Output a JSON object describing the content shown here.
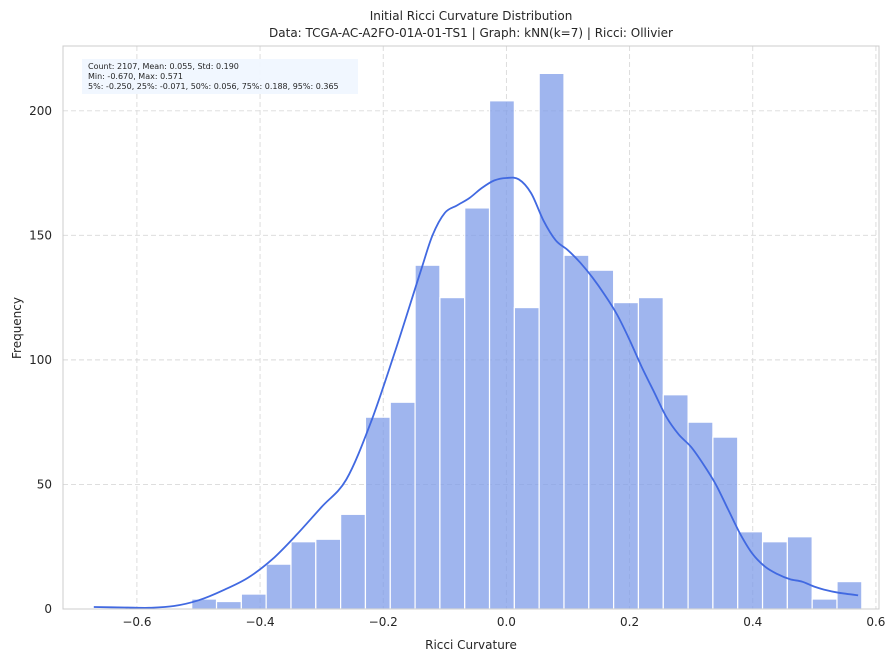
{
  "chart_data": {
    "type": "bar",
    "subtype": "histogram-with-kde",
    "title": "Initial Ricci Curvature Distribution",
    "subtitle": "Data: TCGA-AC-A2FO-01A-01-TS1 | Graph: kNN(k=7) | Ricci: Ollivier",
    "xlabel": "Ricci Curvature",
    "ylabel": "Frequency",
    "xlim": [
      -0.72,
      0.605
    ],
    "ylim": [
      0,
      226
    ],
    "xticks": [
      -0.6,
      -0.4,
      -0.2,
      0.0,
      0.2,
      0.4,
      0.6
    ],
    "xtick_labels": [
      "−0.6",
      "−0.4",
      "−0.2",
      "0.0",
      "0.2",
      "0.4",
      "0.6"
    ],
    "yticks": [
      0,
      50,
      100,
      150,
      200
    ],
    "ytick_labels": [
      "0",
      "50",
      "100",
      "150",
      "200"
    ],
    "grid": true,
    "bin_edges": [
      -0.511,
      -0.4707,
      -0.4304,
      -0.3901,
      -0.3498,
      -0.3095,
      -0.2692,
      -0.2289,
      -0.1886,
      -0.1483,
      -0.108,
      -0.0677,
      -0.0274,
      0.0129,
      0.0532,
      0.0935,
      0.1338,
      0.1741,
      0.2144,
      0.2547,
      0.295,
      0.3353,
      0.3756,
      0.4159,
      0.4562,
      0.4965,
      0.5368,
      0.5771
    ],
    "values": [
      4,
      3,
      6,
      18,
      27,
      28,
      38,
      77,
      83,
      138,
      125,
      161,
      204,
      121,
      215,
      142,
      136,
      123,
      125,
      86,
      75,
      69,
      31,
      27,
      29,
      4,
      11
    ],
    "kde": {
      "x": [
        -0.67,
        -0.62,
        -0.58,
        -0.54,
        -0.5,
        -0.46,
        -0.42,
        -0.38,
        -0.34,
        -0.3,
        -0.26,
        -0.22,
        -0.18,
        -0.14,
        -0.12,
        -0.1,
        -0.08,
        -0.06,
        -0.04,
        -0.02,
        0.0,
        0.02,
        0.04,
        0.06,
        0.08,
        0.1,
        0.12,
        0.14,
        0.16,
        0.18,
        0.2,
        0.22,
        0.24,
        0.26,
        0.28,
        0.3,
        0.32,
        0.34,
        0.36,
        0.38,
        0.4,
        0.42,
        0.44,
        0.46,
        0.48,
        0.5,
        0.52,
        0.54,
        0.571
      ],
      "y": [
        0.8,
        0.6,
        0.5,
        1.2,
        3.5,
        7.5,
        12.5,
        20,
        30,
        41,
        52,
        75,
        104,
        135,
        150,
        159,
        162,
        165,
        169,
        172,
        173,
        172.5,
        167,
        156,
        148,
        144,
        139,
        133,
        126,
        118,
        108,
        97,
        87,
        77,
        70,
        65,
        58,
        50,
        40,
        30,
        22,
        17,
        14,
        12,
        11,
        9,
        7.5,
        6.5,
        5.5
      ],
      "color": "#4169e1"
    },
    "bar_color": "#7f9ce8",
    "stats": {
      "line1": "Count: 2107, Mean: 0.055, Std: 0.190",
      "line2": "Min: -0.670, Max: 0.571",
      "line3": "5%: -0.250, 25%: -0.071, 50%: 0.056, 75%: 0.188, 95%: 0.365",
      "placement": "top-left"
    }
  }
}
